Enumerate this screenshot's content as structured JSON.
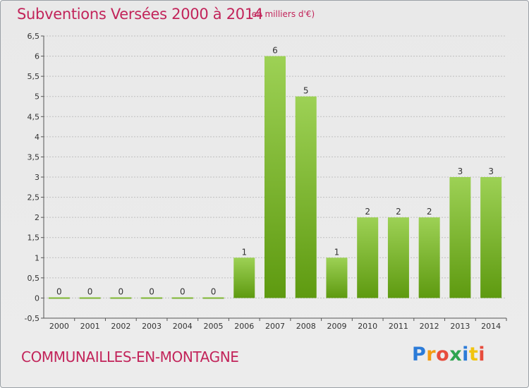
{
  "header": {
    "title": "Subventions Versées 2000 à 2014",
    "subtitle": "(en milliers d'€)"
  },
  "footer": {
    "commune": "COMMUNAILLES-EN-MONTAGNE",
    "brand_letters": [
      {
        "char": "P",
        "color": "#2b7bd8"
      },
      {
        "char": "r",
        "color": "#f39c12"
      },
      {
        "char": "o",
        "color": "#e74c3c"
      },
      {
        "char": "x",
        "color": "#2ea44f"
      },
      {
        "char": "i",
        "color": "#2b7bd8"
      },
      {
        "char": "t",
        "color": "#f1c40f"
      },
      {
        "char": "i",
        "color": "#e74c3c"
      }
    ]
  },
  "colors": {
    "accent": "#c2245a",
    "bar_light": "#9dd155",
    "bar_dark": "#5e9a10",
    "grid": "#bfbfbf",
    "axis": "#555555"
  },
  "chart_data": {
    "type": "bar",
    "categories": [
      "2000",
      "2001",
      "2002",
      "2003",
      "2004",
      "2005",
      "2006",
      "2007",
      "2008",
      "2009",
      "2010",
      "2011",
      "2012",
      "2013",
      "2014"
    ],
    "values": [
      0,
      0,
      0,
      0,
      0,
      0,
      1,
      6,
      5,
      1,
      2,
      2,
      2,
      3,
      3
    ],
    "data_labels": [
      "0",
      "0",
      "0",
      "0",
      "0",
      "0",
      "1",
      "6",
      "5",
      "1",
      "2",
      "2",
      "2",
      "3",
      "3"
    ],
    "ylim": [
      -0.5,
      6.5
    ],
    "yticks": [
      -0.5,
      0,
      0.5,
      1,
      1.5,
      2,
      2.5,
      3,
      3.5,
      4,
      4.5,
      5,
      5.5,
      6,
      6.5
    ],
    "ytick_labels": [
      "-0,5",
      "0",
      "0,5",
      "1",
      "1,5",
      "2",
      "2,5",
      "3",
      "3,5",
      "4",
      "4,5",
      "5",
      "5,5",
      "6",
      "6,5"
    ],
    "grid": true,
    "legend": "none"
  }
}
